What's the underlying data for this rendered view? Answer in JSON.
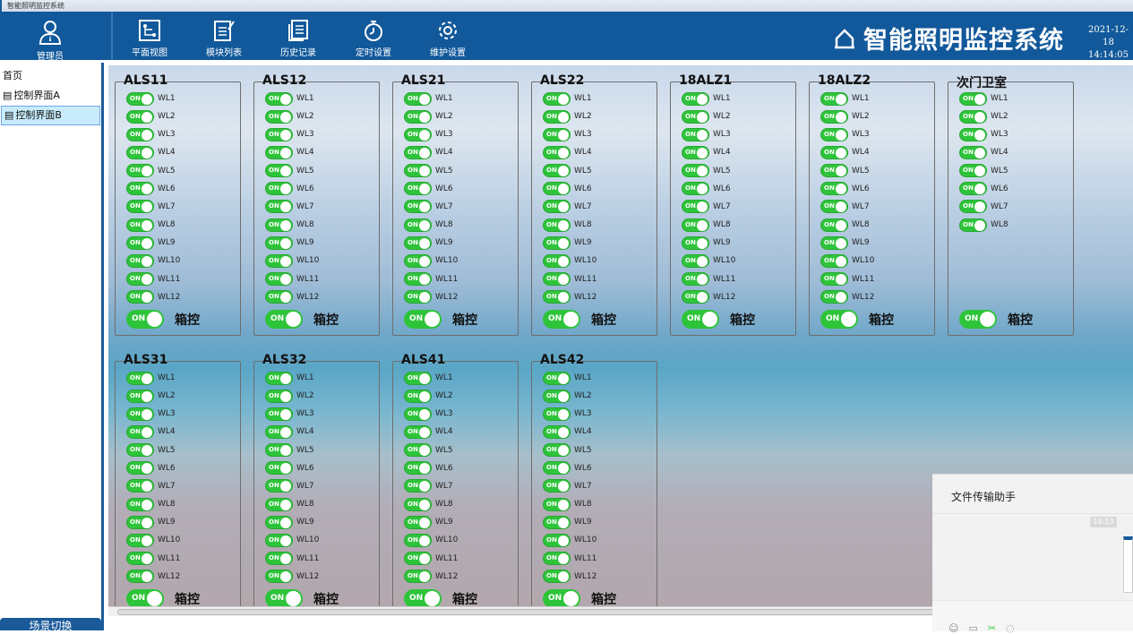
{
  "window_title": "智能照明监控系统",
  "header": {
    "user_label": "管理员",
    "nav": [
      {
        "label": "平面视图",
        "icon": "floorplan-icon"
      },
      {
        "label": "模块列表",
        "icon": "edit-list-icon"
      },
      {
        "label": "历史记录",
        "icon": "history-icon"
      },
      {
        "label": "定时设置",
        "icon": "stopwatch-icon"
      },
      {
        "label": "维护设置",
        "icon": "gear-icon"
      }
    ],
    "app_title": "智能照明监控系统",
    "date": "2021-12-18",
    "time": "14:14:05"
  },
  "sidebar": {
    "items": [
      {
        "label": "首页",
        "selected": false
      },
      {
        "label": "控制界面A",
        "selected": false
      },
      {
        "label": "控制界面B",
        "selected": true
      }
    ],
    "scene_button": "场景切换"
  },
  "switch_on_label": "ON",
  "box_control_label": "箱控",
  "panels": [
    {
      "name": "ALS11",
      "switches": [
        "WL1",
        "WL2",
        "WL3",
        "WL4",
        "WL5",
        "WL6",
        "WL7",
        "WL8",
        "WL9",
        "WL10",
        "WL11",
        "WL12"
      ]
    },
    {
      "name": "ALS12",
      "switches": [
        "WL1",
        "WL2",
        "WL3",
        "WL4",
        "WL5",
        "WL6",
        "WL7",
        "WL8",
        "WL9",
        "WL10",
        "WL11",
        "WL12"
      ]
    },
    {
      "name": "ALS21",
      "switches": [
        "WL1",
        "WL2",
        "WL3",
        "WL4",
        "WL5",
        "WL6",
        "WL7",
        "WL8",
        "WL9",
        "WL10",
        "WL11",
        "WL12"
      ]
    },
    {
      "name": "ALS22",
      "switches": [
        "WL1",
        "WL2",
        "WL3",
        "WL4",
        "WL5",
        "WL6",
        "WL7",
        "WL8",
        "WL9",
        "WL10",
        "WL11",
        "WL12"
      ]
    },
    {
      "name": "18ALZ1",
      "switches": [
        "WL1",
        "WL2",
        "WL3",
        "WL4",
        "WL5",
        "WL6",
        "WL7",
        "WL8",
        "WL9",
        "WL10",
        "WL11",
        "WL12"
      ]
    },
    {
      "name": "18ALZ2",
      "switches": [
        "WL1",
        "WL2",
        "WL3",
        "WL4",
        "WL5",
        "WL6",
        "WL7",
        "WL8",
        "WL9",
        "WL10",
        "WL11",
        "WL12"
      ]
    },
    {
      "name": "次门卫室",
      "switches": [
        "WL1",
        "WL2",
        "WL3",
        "WL4",
        "WL5",
        "WL6",
        "WL7",
        "WL8"
      ]
    },
    {
      "name": "ALS31",
      "switches": [
        "WL1",
        "WL2",
        "WL3",
        "WL4",
        "WL5",
        "WL6",
        "WL7",
        "WL8",
        "WL9",
        "WL10",
        "WL11",
        "WL12"
      ]
    },
    {
      "name": "ALS32",
      "switches": [
        "WL1",
        "WL2",
        "WL3",
        "WL4",
        "WL5",
        "WL6",
        "WL7",
        "WL8",
        "WL9",
        "WL10",
        "WL11",
        "WL12"
      ]
    },
    {
      "name": "ALS41",
      "switches": [
        "WL1",
        "WL2",
        "WL3",
        "WL4",
        "WL5",
        "WL6",
        "WL7",
        "WL8",
        "WL9",
        "WL10",
        "WL11",
        "WL12"
      ]
    },
    {
      "name": "ALS42",
      "switches": [
        "WL1",
        "WL2",
        "WL3",
        "WL4",
        "WL5",
        "WL6",
        "WL7",
        "WL8",
        "WL9",
        "WL10",
        "WL11",
        "WL12"
      ]
    }
  ],
  "chat_popup": {
    "title": "文件传输助手",
    "timestamp": "14:13"
  },
  "colors": {
    "header_bg": "#12599b",
    "switch_on": "#2ec43a",
    "selected_item": "#c8ecfb"
  }
}
